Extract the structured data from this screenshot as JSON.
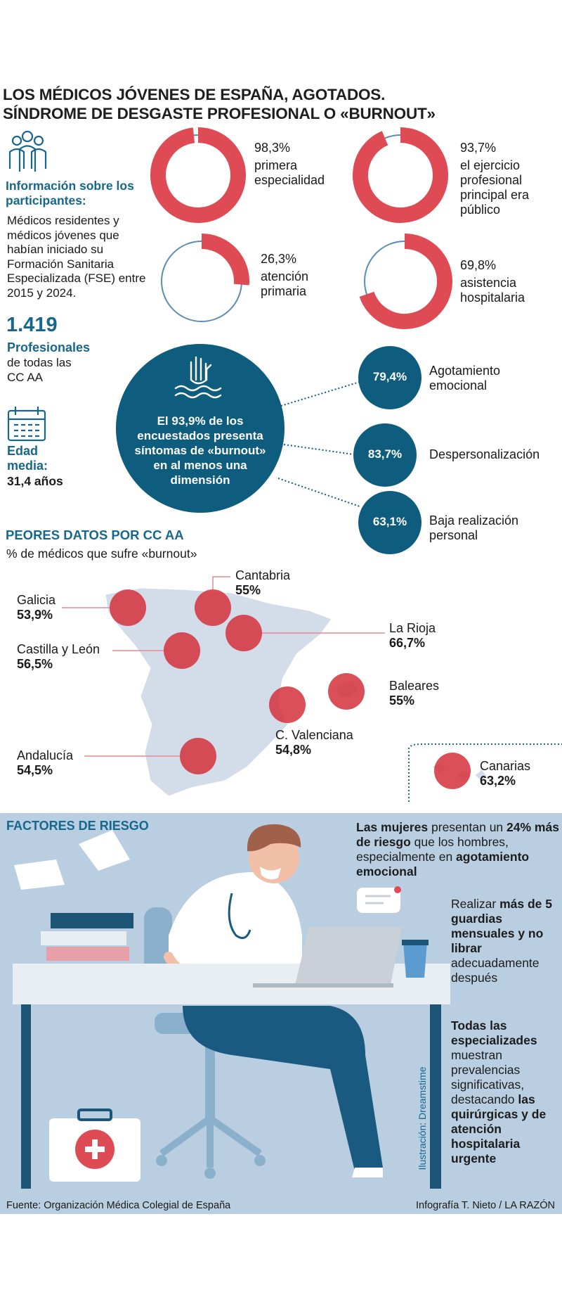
{
  "title": {
    "line1": "LOS MÉDICOS JÓVENES DE ESPAÑA, AGOTADOS.",
    "line2": "SÍNDROME DE DESGASTE PROFESIONAL O «BURNOUT»"
  },
  "participants": {
    "heading": "Información sobre los participantes:",
    "description": "Médicos residentes y médicos jóvenes que habían iniciado su Formación Sanitaria Especializada (FSE) entre 2015 y 2024.",
    "count": "1.419",
    "count_label": "Profesionales",
    "count_detail": "de todas las CC AA",
    "age_label": "Edad media:",
    "age": "31,4 años"
  },
  "donuts": {
    "color": "#de4b55",
    "items": [
      {
        "value": 98.3,
        "label": "98,3%",
        "text": "primera especialidad"
      },
      {
        "value": 93.7,
        "label": "93,7%",
        "text": "el ejercicio profesional principal era público"
      },
      {
        "value": 26.3,
        "label": "26,3%",
        "text": "atención primaria"
      },
      {
        "value": 69.8,
        "label": "69,8%",
        "text": "asistencia hospitalaria"
      }
    ]
  },
  "burnout": {
    "summary": "El 93,9% de los encuestados presenta síntomas de «burnout» en al menos una dimensión",
    "dimensions": [
      {
        "label": "79,4%",
        "name": "Agotamiento emocional"
      },
      {
        "label": "83,7%",
        "name": "Despersonalización"
      },
      {
        "label": "63,1%",
        "name": "Baja realización personal"
      }
    ]
  },
  "regions": {
    "title": "PEORES DATOS POR CC AA",
    "subtitle": "% de médicos que sufre «burnout»",
    "items": [
      {
        "name": "Galicia",
        "label": "53,9%"
      },
      {
        "name": "Cantabria",
        "label": "55%"
      },
      {
        "name": "La Rioja",
        "label": "66,7%"
      },
      {
        "name": "Castilla y León",
        "label": "56,5%"
      },
      {
        "name": "Baleares",
        "label": "55%"
      },
      {
        "name": "C. Valenciana",
        "label": "54,8%"
      },
      {
        "name": "Andalucía",
        "label": "54,5%"
      },
      {
        "name": "Canarias",
        "label": "63,2%"
      }
    ]
  },
  "risk": {
    "title": "FACTORES DE RIESGO",
    "credit": "Ilustración: Dreamstime",
    "items": [
      {
        "segments": [
          {
            "text": "Las mujeres",
            "bold": true
          },
          {
            "text": " presentan un ",
            "bold": false
          },
          {
            "text": "24% más de riesgo",
            "bold": true
          },
          {
            "text": " que los hombres, especialmente en ",
            "bold": false
          },
          {
            "text": "agotamiento emocional",
            "bold": true
          }
        ]
      },
      {
        "segments": [
          {
            "text": "Realizar ",
            "bold": false
          },
          {
            "text": "más de 5 guardias mensuales y no librar",
            "bold": true
          },
          {
            "text": " adecuadamente después",
            "bold": false
          }
        ]
      },
      {
        "segments": [
          {
            "text": "Todas las especializades",
            "bold": true
          },
          {
            "text": " muestran prevalencias significativas, destacando ",
            "bold": false
          },
          {
            "text": "las quirúrgicas y de atención hospitalaria urgente",
            "bold": true
          }
        ]
      }
    ]
  },
  "footer": {
    "source": "Fuente: Organización Médica Colegial de España",
    "credit": "Infografía T. Nieto / LA RAZÓN"
  }
}
